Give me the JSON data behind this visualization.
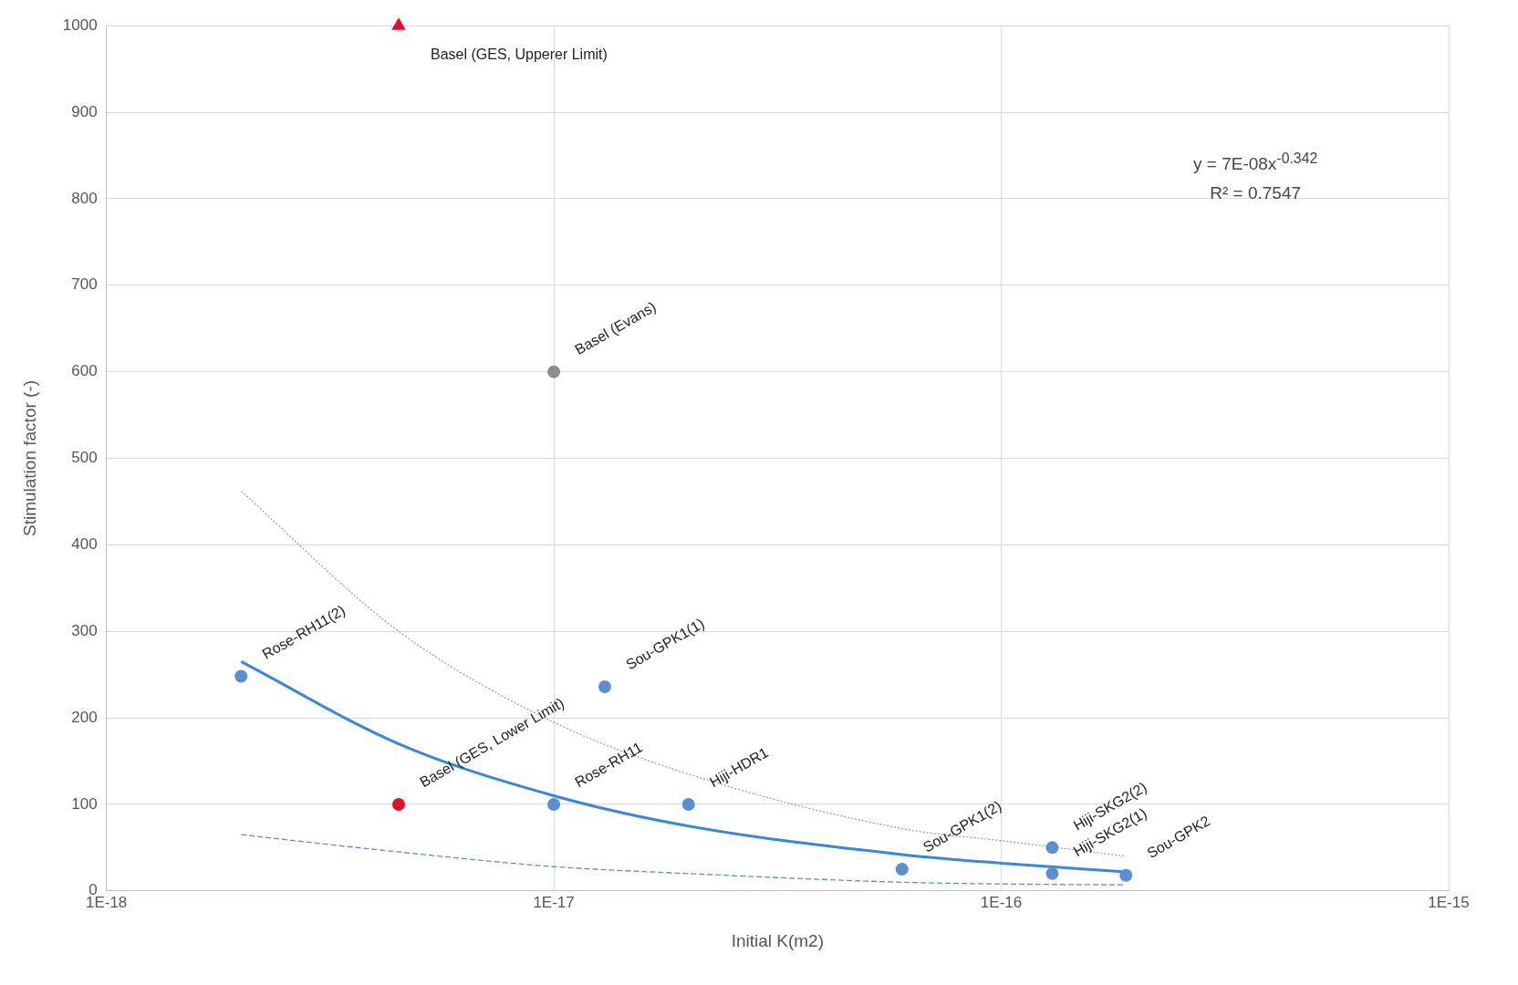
{
  "chart_data": {
    "type": "scatter",
    "xlabel": "Initial K(m2)",
    "ylabel": "Stimulation factor (-)",
    "log": "x",
    "grid": true,
    "xlim": [
      1e-18,
      1e-15
    ],
    "xticks": [
      {
        "value": 1e-18,
        "label": "1E-18"
      },
      {
        "value": 1e-17,
        "label": "1E-17"
      },
      {
        "value": 1e-16,
        "label": "1E-16"
      },
      {
        "value": 1e-15,
        "label": "1E-15"
      }
    ],
    "ylim": [
      0,
      1000
    ],
    "yticks": [
      0,
      100,
      200,
      300,
      400,
      500,
      600,
      700,
      800,
      900,
      1000
    ],
    "annotations": [
      "y = 7E-08x$^{-0.342}$",
      "R² = 0.7547"
    ],
    "series": [
      {
        "type": "line",
        "color": "#a0a0a0",
        "line_style": "dotted",
        "marker": "none",
        "x": [
          2e-18,
          4.5e-18,
          1e-17,
          2e-17,
          6e-17,
          1e-16,
          1.9e-16
        ],
        "values": [
          462,
          300,
          195,
          135,
          72,
          58,
          40
        ]
      },
      {
        "type": "line",
        "color": "#5b8fd0",
        "line_style": "dashed",
        "marker": "none",
        "x": [
          2e-18,
          4.5e-18,
          1e-17,
          2e-17,
          6e-17,
          1e-16,
          1.9e-16
        ],
        "values": [
          65,
          45,
          28,
          20,
          10,
          8,
          7
        ]
      },
      {
        "type": "line",
        "color": "#3a87d6",
        "line_style": "solid",
        "marker": "none",
        "x": [
          2e-18,
          4.5e-18,
          1e-17,
          2e-17,
          6e-17,
          1e-16,
          1.9e-16
        ],
        "values": [
          265,
          170,
          110,
          75,
          42,
          32,
          22
        ]
      },
      {
        "name": "Basel (GES, Upperer Limit)",
        "color": "#e0102a",
        "marker": "triangle",
        "x": [
          4.5e-18
        ],
        "values": [
          1000
        ]
      },
      {
        "name": "Basel (Evans)",
        "color": "#8c8c8c",
        "marker": "circle",
        "x": [
          1e-17
        ],
        "values": [
          600
        ]
      },
      {
        "name": "Rose-RH11(2)",
        "color": "#5b8fd0",
        "marker": "circle",
        "x": [
          2e-18
        ],
        "values": [
          248
        ]
      },
      {
        "name": "Basel (GES, Lower Limit)",
        "color": "#e0102a",
        "marker": "circle",
        "x": [
          4.5e-18
        ],
        "values": [
          100
        ]
      },
      {
        "name": "Sou-GPK1(1)",
        "color": "#5b8fd0",
        "marker": "circle",
        "x": [
          1.3e-17
        ],
        "values": [
          236
        ]
      },
      {
        "name": "Rose-RH11",
        "color": "#5b8fd0",
        "marker": "circle",
        "x": [
          1e-17
        ],
        "values": [
          100
        ]
      },
      {
        "name": "Hiji-HDR1",
        "color": "#5b8fd0",
        "marker": "circle",
        "x": [
          2e-17
        ],
        "values": [
          100
        ]
      },
      {
        "name": "Sou-GPK1(2)",
        "color": "#5b8fd0",
        "marker": "circle",
        "x": [
          6e-17
        ],
        "values": [
          25
        ]
      },
      {
        "name": "Hiji-SKG2(2)",
        "color": "#5b8fd0",
        "marker": "circle",
        "x": [
          1.3e-16
        ],
        "values": [
          50
        ]
      },
      {
        "name": "Hiji-SKG2(1)",
        "color": "#5b8fd0",
        "marker": "circle",
        "x": [
          1.3e-16
        ],
        "values": [
          20
        ]
      },
      {
        "name": "Sou-GPK2",
        "color": "#5b8fd0",
        "marker": "circle",
        "x": [
          1.9e-16
        ],
        "values": [
          18
        ]
      }
    ]
  }
}
